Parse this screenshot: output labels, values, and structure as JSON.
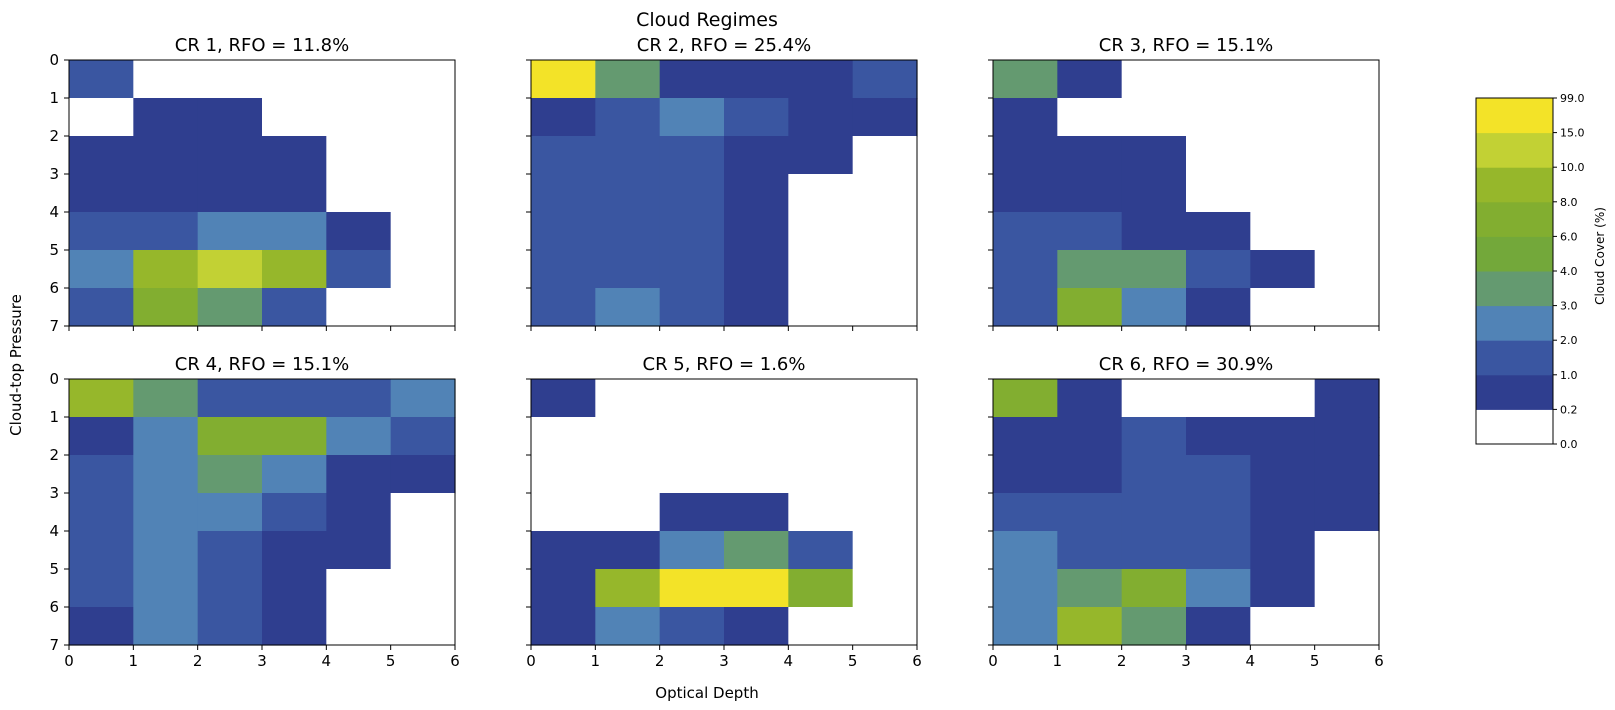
{
  "figure": {
    "title": "Cloud Regimes",
    "xlabel": "Optical Depth",
    "ylabel": "Cloud-top Pressure"
  },
  "colorbar": {
    "label": "Cloud Cover (%)",
    "boundaries": [
      "0.0",
      "0.2",
      "1.0",
      "2.0",
      "3.0",
      "4.0",
      "6.0",
      "8.0",
      "10.0",
      "15.0",
      "99.0"
    ],
    "colors": [
      "#ffffff",
      "#2f3e8f",
      "#3a56a1",
      "#5183b6",
      "#649a70",
      "#73a83a",
      "#82ae30",
      "#96b72b",
      "#c2d134",
      "#f3e328"
    ]
  },
  "chart_data": [
    {
      "type": "heatmap",
      "title": "CR 1, RFO = 11.8%",
      "x_ticks": [
        "0",
        "1",
        "2",
        "3",
        "4",
        "5",
        "6"
      ],
      "y_ticks": [
        "0",
        "1",
        "2",
        "3",
        "4",
        "5",
        "6",
        "7"
      ],
      "xlim": [
        0,
        6
      ],
      "ylim": [
        7,
        0
      ],
      "values": [
        [
          1,
          0,
          0,
          0,
          0,
          0
        ],
        [
          0,
          0.5,
          0.5,
          0,
          0,
          0
        ],
        [
          0.5,
          0.5,
          0.5,
          0.5,
          0,
          0
        ],
        [
          0.5,
          0.5,
          0.5,
          0.5,
          0,
          0
        ],
        [
          1,
          1,
          2,
          2,
          0.5,
          0
        ],
        [
          2,
          8,
          10,
          8,
          1,
          0
        ],
        [
          1,
          6,
          3,
          1,
          0,
          0
        ]
      ]
    },
    {
      "type": "heatmap",
      "title": "CR 2, RFO = 25.4%",
      "x_ticks": [
        "0",
        "1",
        "2",
        "3",
        "4",
        "5",
        "6"
      ],
      "y_ticks": [
        "0",
        "1",
        "2",
        "3",
        "4",
        "5",
        "6",
        "7"
      ],
      "xlim": [
        0,
        6
      ],
      "ylim": [
        7,
        0
      ],
      "values": [
        [
          15,
          3,
          0.5,
          0.5,
          0.5,
          1
        ],
        [
          0.5,
          1,
          2,
          1,
          0.5,
          0.5
        ],
        [
          1,
          1,
          1,
          0.5,
          0.5,
          0
        ],
        [
          1,
          1,
          1,
          0.5,
          0,
          0
        ],
        [
          1,
          1,
          1,
          0.5,
          0,
          0
        ],
        [
          1,
          1,
          1,
          0.5,
          0,
          0
        ],
        [
          1,
          2,
          1,
          0.5,
          0,
          0
        ]
      ]
    },
    {
      "type": "heatmap",
      "title": "CR 3, RFO = 15.1%",
      "x_ticks": [
        "0",
        "1",
        "2",
        "3",
        "4",
        "5",
        "6"
      ],
      "y_ticks": [
        "0",
        "1",
        "2",
        "3",
        "4",
        "5",
        "6",
        "7"
      ],
      "xlim": [
        0,
        6
      ],
      "ylim": [
        7,
        0
      ],
      "values": [
        [
          3,
          0.5,
          0,
          0,
          0,
          0
        ],
        [
          0.5,
          0,
          0,
          0,
          0,
          0
        ],
        [
          0.5,
          0.5,
          0.5,
          0,
          0,
          0
        ],
        [
          0.5,
          0.5,
          0.5,
          0,
          0,
          0
        ],
        [
          1,
          1,
          0.5,
          0.5,
          0,
          0
        ],
        [
          1,
          3,
          3,
          1,
          0.5,
          0
        ],
        [
          1,
          6,
          2,
          0.5,
          0,
          0
        ]
      ]
    },
    {
      "type": "heatmap",
      "title": "CR 4, RFO = 15.1%",
      "x_ticks": [
        "0",
        "1",
        "2",
        "3",
        "4",
        "5",
        "6"
      ],
      "y_ticks": [
        "0",
        "1",
        "2",
        "3",
        "4",
        "5",
        "6",
        "7"
      ],
      "xlim": [
        0,
        6
      ],
      "ylim": [
        7,
        0
      ],
      "values": [
        [
          8,
          3,
          1,
          1,
          1,
          2
        ],
        [
          0.5,
          2,
          6,
          6,
          2,
          1
        ],
        [
          1,
          2,
          3,
          2,
          0.5,
          0.5
        ],
        [
          1,
          2,
          2,
          1,
          0.5,
          0
        ],
        [
          1,
          2,
          1,
          0.5,
          0.5,
          0
        ],
        [
          1,
          2,
          1,
          0.5,
          0,
          0
        ],
        [
          0.5,
          2,
          1,
          0.5,
          0,
          0
        ]
      ]
    },
    {
      "type": "heatmap",
      "title": "CR 5, RFO = 1.6%",
      "x_ticks": [
        "0",
        "1",
        "2",
        "3",
        "4",
        "5",
        "6"
      ],
      "y_ticks": [
        "0",
        "1",
        "2",
        "3",
        "4",
        "5",
        "6",
        "7"
      ],
      "xlim": [
        0,
        6
      ],
      "ylim": [
        7,
        0
      ],
      "values": [
        [
          0.5,
          0,
          0,
          0,
          0,
          0
        ],
        [
          0,
          0,
          0,
          0,
          0,
          0
        ],
        [
          0,
          0,
          0,
          0,
          0,
          0
        ],
        [
          0,
          0,
          0.5,
          0.5,
          0,
          0
        ],
        [
          0.5,
          0.5,
          2,
          3,
          1,
          0
        ],
        [
          0.5,
          8,
          15,
          15,
          6,
          0
        ],
        [
          0.5,
          2,
          1,
          0.5,
          0,
          0
        ]
      ]
    },
    {
      "type": "heatmap",
      "title": "CR 6, RFO = 30.9%",
      "x_ticks": [
        "0",
        "1",
        "2",
        "3",
        "4",
        "5",
        "6"
      ],
      "y_ticks": [
        "0",
        "1",
        "2",
        "3",
        "4",
        "5",
        "6",
        "7"
      ],
      "xlim": [
        0,
        6
      ],
      "ylim": [
        7,
        0
      ],
      "values": [
        [
          6,
          0.5,
          0,
          0,
          0,
          0.5
        ],
        [
          0.5,
          0.5,
          1,
          0.5,
          0.5,
          0.5
        ],
        [
          0.5,
          0.5,
          1,
          1,
          0.5,
          0.5
        ],
        [
          1,
          1,
          1,
          1,
          0.5,
          0.5
        ],
        [
          2,
          1,
          1,
          1,
          0.5,
          0
        ],
        [
          2,
          3,
          6,
          2,
          0.5,
          0
        ],
        [
          2,
          8,
          3,
          0.5,
          0,
          0
        ]
      ]
    }
  ]
}
